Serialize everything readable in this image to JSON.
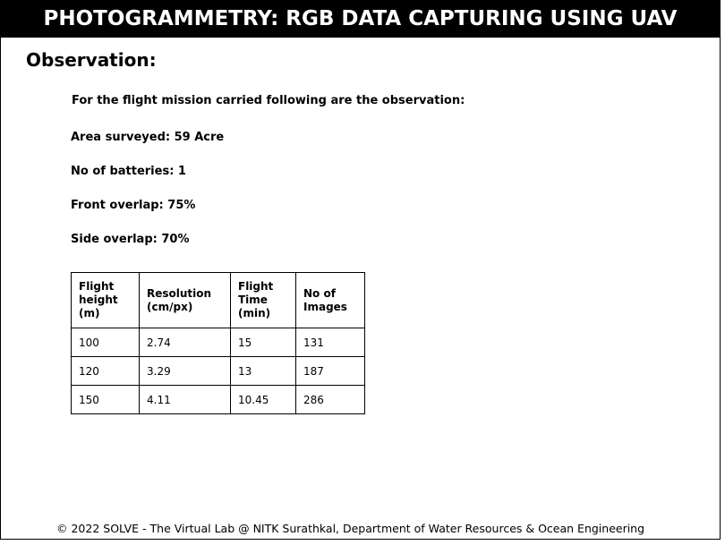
{
  "header": {
    "title": "PHOTOGRAMMETRY: RGB DATA CAPTURING USING UAV"
  },
  "main": {
    "heading": "Observation:",
    "intro": "For the flight mission carried following are the observation:",
    "observations": [
      "Area surveyed: 59 Acre",
      "No of batteries: 1",
      "Front overlap: 75%",
      "Side overlap: 70%"
    ],
    "table": {
      "columns": [
        [
          "Flight",
          "height",
          "(m)"
        ],
        [
          "Resolution",
          "(cm/px)"
        ],
        [
          "Flight",
          "Time",
          "(min)"
        ],
        [
          "No of",
          "Images"
        ]
      ],
      "rows": [
        [
          "100",
          "2.74",
          "15",
          "131"
        ],
        [
          "120",
          "3.29",
          "13",
          "187"
        ],
        [
          "150",
          "4.11",
          "10.45",
          "286"
        ]
      ]
    }
  },
  "footer": {
    "text": "© 2022 SOLVE - The Virtual Lab @ NITK Surathkal, Department of Water Resources & Ocean Engineering"
  }
}
